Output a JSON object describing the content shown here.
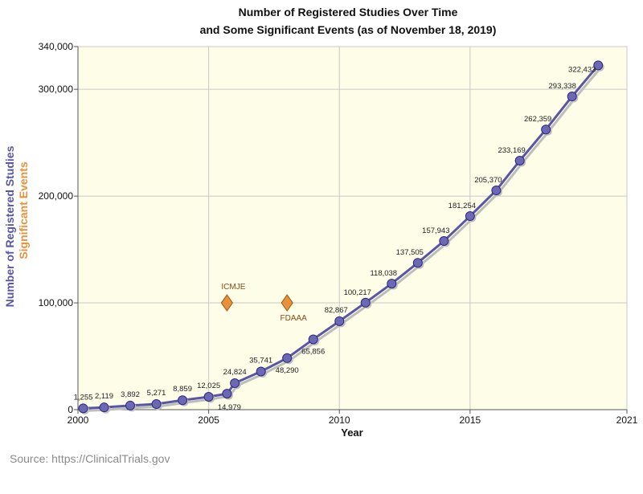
{
  "chart_data": {
    "type": "line",
    "title_line1": "Number of Registered Studies Over Time",
    "title_line2": "and Some Significant Events (as of November 18, 2019)",
    "xlabel": "Year",
    "ylabel": "Number of Registered Studies",
    "ylabel2": "Significant Events",
    "xlim": [
      2000,
      2021
    ],
    "ylim": [
      0,
      340000
    ],
    "x_ticks": [
      2000,
      2005,
      2010,
      2015,
      2021
    ],
    "x_tick_labels": [
      "2000",
      "2005",
      "2010",
      "2015",
      "2021"
    ],
    "y_ticks": [
      0,
      100000,
      200000,
      300000,
      340000
    ],
    "y_tick_labels": [
      "0",
      "100,000",
      "200,000",
      "300,000",
      "340,000"
    ],
    "grid": true,
    "series": [
      {
        "color": "#5a56a6",
        "points": [
          {
            "x": 2000.2,
            "y": 1255,
            "label": "1,255"
          },
          {
            "x": 2001.0,
            "y": 2119,
            "label": "2,119"
          },
          {
            "x": 2002.0,
            "y": 3892,
            "label": "3,892"
          },
          {
            "x": 2003.0,
            "y": 5271,
            "label": "5,271"
          },
          {
            "x": 2004.0,
            "y": 8859,
            "label": "8,859"
          },
          {
            "x": 2005.0,
            "y": 12025,
            "label": "12,025"
          },
          {
            "x": 2005.7,
            "y": 14979,
            "label": "14,979"
          },
          {
            "x": 2006.0,
            "y": 24824,
            "label": "24,824"
          },
          {
            "x": 2007.0,
            "y": 35741,
            "label": "35,741"
          },
          {
            "x": 2008.0,
            "y": 48290,
            "label": "48,290"
          },
          {
            "x": 2009.0,
            "y": 65856,
            "label": "65,856"
          },
          {
            "x": 2010.0,
            "y": 82867,
            "label": "82,867"
          },
          {
            "x": 2011.0,
            "y": 100217,
            "label": "100,217"
          },
          {
            "x": 2012.0,
            "y": 118038,
            "label": "118,038"
          },
          {
            "x": 2013.0,
            "y": 137505,
            "label": "137,505"
          },
          {
            "x": 2014.0,
            "y": 157943,
            "label": "157,943"
          },
          {
            "x": 2015.0,
            "y": 181254,
            "label": "181,254"
          },
          {
            "x": 2016.0,
            "y": 205370,
            "label": "205,370"
          },
          {
            "x": 2016.9,
            "y": 233169,
            "label": "233,169"
          },
          {
            "x": 2017.9,
            "y": 262359,
            "label": "262,359"
          },
          {
            "x": 2018.9,
            "y": 293338,
            "label": "293,338"
          },
          {
            "x": 2019.9,
            "y": 322433,
            "label": "322,433"
          }
        ]
      }
    ],
    "events": [
      {
        "label": "ICMJE",
        "x": 2005.7,
        "y": 100000,
        "label_position": "above"
      },
      {
        "label": "FDAAA",
        "x": 2008.0,
        "y": 100000,
        "label_position": "below"
      }
    ],
    "colors": {
      "series": "#5a56a6",
      "marker_fill": "#6b68b5",
      "event": "#e8913a",
      "event_label": "#8a4a10",
      "plot_background": "#fdfde8",
      "grid": "#c9c9c9",
      "ylabel": "#5a56a6",
      "ylabel2": "#e8913a"
    }
  },
  "source_text": "Source: https://ClinicalTrials.gov"
}
